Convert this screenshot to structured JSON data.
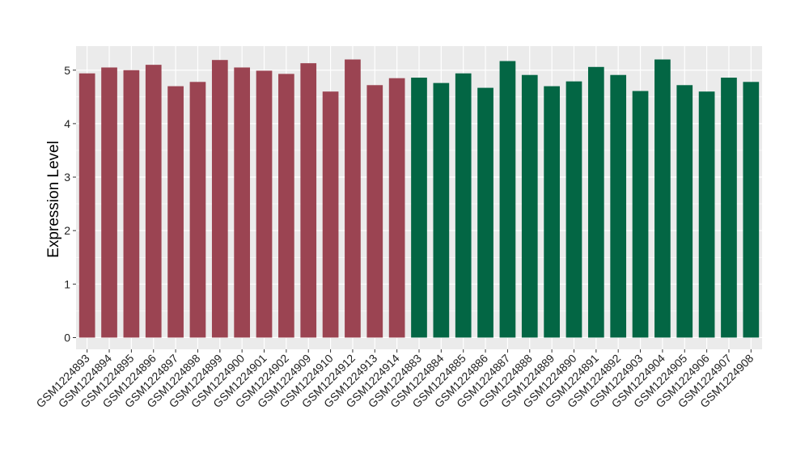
{
  "chart_data": {
    "type": "bar",
    "title": "",
    "xlabel": "",
    "ylabel": "Expression Level",
    "ylim": [
      -0.22,
      5.45
    ],
    "yticks": [
      0,
      1,
      2,
      3,
      4,
      5
    ],
    "grid": true,
    "legend": "none",
    "categories": [
      "GSM1224893",
      "GSM1224894",
      "GSM1224895",
      "GSM1224896",
      "GSM1224897",
      "GSM1224898",
      "GSM1224899",
      "GSM1224900",
      "GSM1224901",
      "GSM1224902",
      "GSM1224909",
      "GSM1224910",
      "GSM1224912",
      "GSM1224913",
      "GSM1224914",
      "GSM1224883",
      "GSM1224884",
      "GSM1224885",
      "GSM1224886",
      "GSM1224887",
      "GSM1224888",
      "GSM1224889",
      "GSM1224890",
      "GSM1224891",
      "GSM1224892",
      "GSM1224903",
      "GSM1224904",
      "GSM1224905",
      "GSM1224906",
      "GSM1224907",
      "GSM1224908"
    ],
    "values": [
      4.94,
      5.05,
      5.0,
      5.1,
      4.7,
      4.78,
      5.19,
      5.05,
      4.99,
      4.93,
      5.13,
      4.6,
      5.2,
      4.72,
      4.85,
      4.86,
      4.76,
      4.94,
      4.67,
      5.17,
      4.91,
      4.7,
      4.79,
      5.06,
      4.91,
      4.61,
      5.2,
      4.72,
      4.6,
      4.86,
      4.78
    ],
    "group_sizes": [
      15,
      16
    ],
    "colors": {
      "group1": "#9b4452",
      "group2": "#036644",
      "panel_bg": "#ebebeb",
      "grid": "#ffffff"
    }
  }
}
